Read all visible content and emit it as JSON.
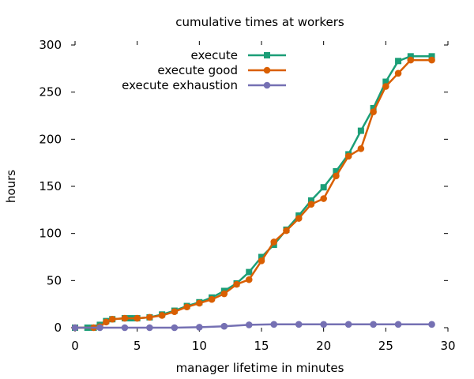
{
  "chart_data": {
    "type": "line",
    "title": "cumulative times at workers",
    "xlabel": "manager lifetime in minutes",
    "ylabel": "hours",
    "xlim": [
      0,
      30
    ],
    "ylim": [
      0,
      300
    ],
    "xticks": [
      0,
      5,
      10,
      15,
      20,
      25,
      30
    ],
    "yticks": [
      0,
      50,
      100,
      150,
      200,
      250,
      300
    ],
    "grid": false,
    "legend_position": "top-right",
    "series": [
      {
        "name": "execute",
        "color": "#1b9e77",
        "marker": "square",
        "points": [
          [
            0,
            0
          ],
          [
            1,
            0
          ],
          [
            1.5,
            0
          ],
          [
            2,
            3
          ],
          [
            2.5,
            7
          ],
          [
            3,
            9
          ],
          [
            4,
            10
          ],
          [
            4.5,
            10
          ],
          [
            5,
            10
          ],
          [
            6,
            11
          ],
          [
            7,
            14
          ],
          [
            8,
            18
          ],
          [
            9,
            23
          ],
          [
            10,
            27
          ],
          [
            11,
            32
          ],
          [
            12,
            39
          ],
          [
            13,
            47
          ],
          [
            14,
            59
          ],
          [
            15,
            75
          ],
          [
            16,
            88
          ],
          [
            17,
            104
          ],
          [
            18,
            119
          ],
          [
            19,
            135
          ],
          [
            20,
            149
          ],
          [
            21,
            166
          ],
          [
            22,
            184
          ],
          [
            23,
            209
          ],
          [
            24,
            233
          ],
          [
            25,
            261
          ],
          [
            26,
            283
          ],
          [
            27,
            288
          ],
          [
            28.7,
            288
          ]
        ]
      },
      {
        "name": "execute good",
        "color": "#d95f02",
        "marker": "circle",
        "points": [
          [
            0,
            0
          ],
          [
            1.5,
            0
          ],
          [
            2,
            1
          ],
          [
            2.5,
            6
          ],
          [
            3,
            9
          ],
          [
            4,
            10
          ],
          [
            5,
            10
          ],
          [
            6,
            11
          ],
          [
            7,
            13
          ],
          [
            8,
            17
          ],
          [
            9,
            22
          ],
          [
            10,
            26
          ],
          [
            11,
            30
          ],
          [
            12,
            36
          ],
          [
            13,
            46
          ],
          [
            14,
            51
          ],
          [
            15,
            71
          ],
          [
            16,
            91
          ],
          [
            17,
            103
          ],
          [
            18,
            116
          ],
          [
            19,
            131
          ],
          [
            20,
            137
          ],
          [
            21,
            161
          ],
          [
            22,
            182
          ],
          [
            23,
            190
          ],
          [
            24,
            229
          ],
          [
            25,
            256
          ],
          [
            26,
            270
          ],
          [
            27,
            284
          ],
          [
            28.7,
            284
          ]
        ]
      },
      {
        "name": "execute exhaustion",
        "color": "#7570b3",
        "marker": "circle",
        "points": [
          [
            0,
            0
          ],
          [
            2,
            0
          ],
          [
            4,
            0
          ],
          [
            6,
            0
          ],
          [
            8,
            0
          ],
          [
            10,
            0.5
          ],
          [
            12,
            1.5
          ],
          [
            14,
            3
          ],
          [
            16,
            3.5
          ],
          [
            18,
            3.5
          ],
          [
            20,
            3.5
          ],
          [
            22,
            3.5
          ],
          [
            24,
            3.5
          ],
          [
            26,
            3.5
          ],
          [
            28.7,
            3.5
          ]
        ]
      }
    ]
  }
}
